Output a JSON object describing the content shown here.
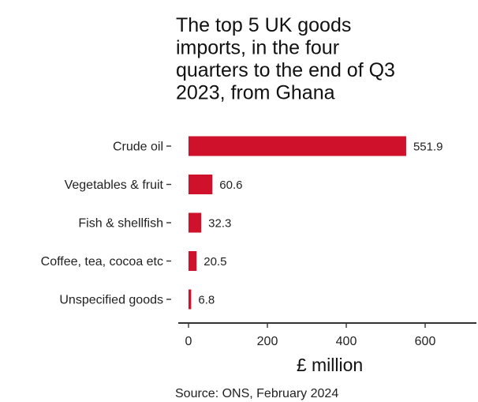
{
  "chart_data": {
    "type": "bar",
    "orientation": "horizontal",
    "title_lines": [
      "The top 5 UK goods",
      "imports, in the four",
      "quarters to the end of Q3",
      "2023, from Ghana"
    ],
    "categories": [
      "Crude oil",
      "Vegetables & fruit",
      "Fish & shellfish",
      "Coffee, tea, cocoa etc",
      "Unspecified goods"
    ],
    "values": [
      551.9,
      60.6,
      32.3,
      20.5,
      6.8
    ],
    "value_labels": [
      "551.9",
      "60.6",
      "32.3",
      "20.5",
      "6.8"
    ],
    "xlabel": "£ million",
    "xlim": [
      0,
      700
    ],
    "xticks": [
      0,
      200,
      400,
      600
    ],
    "xtick_labels": [
      "0",
      "200",
      "400",
      "600"
    ],
    "source": "Source: ONS, February 2024",
    "bar_color": "#d0112b",
    "grid": false,
    "legend": "none"
  }
}
